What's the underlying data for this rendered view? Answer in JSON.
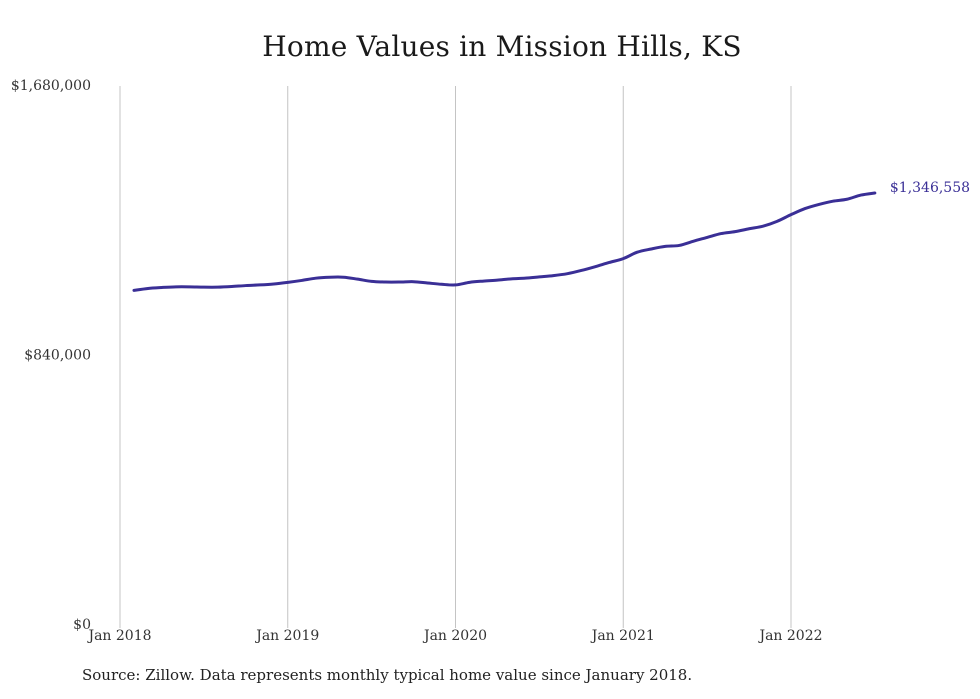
{
  "chart_data": {
    "type": "line",
    "title": "Home Values in Mission Hills, KS",
    "xlabel": "",
    "ylabel": "",
    "ylim": [
      0,
      1680000
    ],
    "y_ticks": [
      {
        "value": 0,
        "label": "$0"
      },
      {
        "value": 840000,
        "label": "$840,000"
      },
      {
        "value": 1680000,
        "label": "$1,680,000"
      }
    ],
    "x_ticks": [
      {
        "value": "2018-01",
        "label": "Jan 2018"
      },
      {
        "value": "2019-01",
        "label": "Jan 2019"
      },
      {
        "value": "2020-01",
        "label": "Jan 2020"
      },
      {
        "value": "2021-01",
        "label": "Jan 2021"
      },
      {
        "value": "2022-01",
        "label": "Jan 2022"
      }
    ],
    "x_range": [
      "2018-01",
      "2022-07"
    ],
    "grid": {
      "vertical": true,
      "horizontal": false
    },
    "line_color": "#3a2f96",
    "series": [
      {
        "x": [
          "2018-02",
          "2018-03",
          "2018-04",
          "2018-05",
          "2018-06",
          "2018-07",
          "2018-08",
          "2018-09",
          "2018-10",
          "2018-11",
          "2018-12",
          "2019-01",
          "2019-02",
          "2019-03",
          "2019-04",
          "2019-05",
          "2019-06",
          "2019-07",
          "2019-08",
          "2019-09",
          "2019-10",
          "2019-11",
          "2019-12",
          "2020-01",
          "2020-02",
          "2020-03",
          "2020-04",
          "2020-05",
          "2020-06",
          "2020-07",
          "2020-08",
          "2020-09",
          "2020-10",
          "2020-11",
          "2020-12",
          "2021-01",
          "2021-02",
          "2021-03",
          "2021-04",
          "2021-05",
          "2021-06",
          "2021-07",
          "2021-08",
          "2021-09",
          "2021-10",
          "2021-11",
          "2021-12",
          "2022-01",
          "2022-02",
          "2022-03",
          "2022-04",
          "2022-05",
          "2022-06",
          "2022-07"
        ],
        "values": [
          1043000,
          1049000,
          1052000,
          1054000,
          1054000,
          1053000,
          1053000,
          1055000,
          1058000,
          1060000,
          1063000,
          1068000,
          1074000,
          1081000,
          1084000,
          1084000,
          1078000,
          1071000,
          1069000,
          1069000,
          1070000,
          1066000,
          1062000,
          1060000,
          1068000,
          1072000,
          1075000,
          1079000,
          1081000,
          1085000,
          1089000,
          1095000,
          1105000,
          1117000,
          1130000,
          1142000,
          1162000,
          1172000,
          1180000,
          1183000,
          1196000,
          1208000,
          1220000,
          1226000,
          1235000,
          1243000,
          1258000,
          1279000,
          1298000,
          1311000,
          1321000,
          1327000,
          1340000,
          1346558
        ]
      }
    ],
    "end_label": "$1,346,558"
  },
  "source": "Source: Zillow. Data represents monthly typical home value since January 2018."
}
